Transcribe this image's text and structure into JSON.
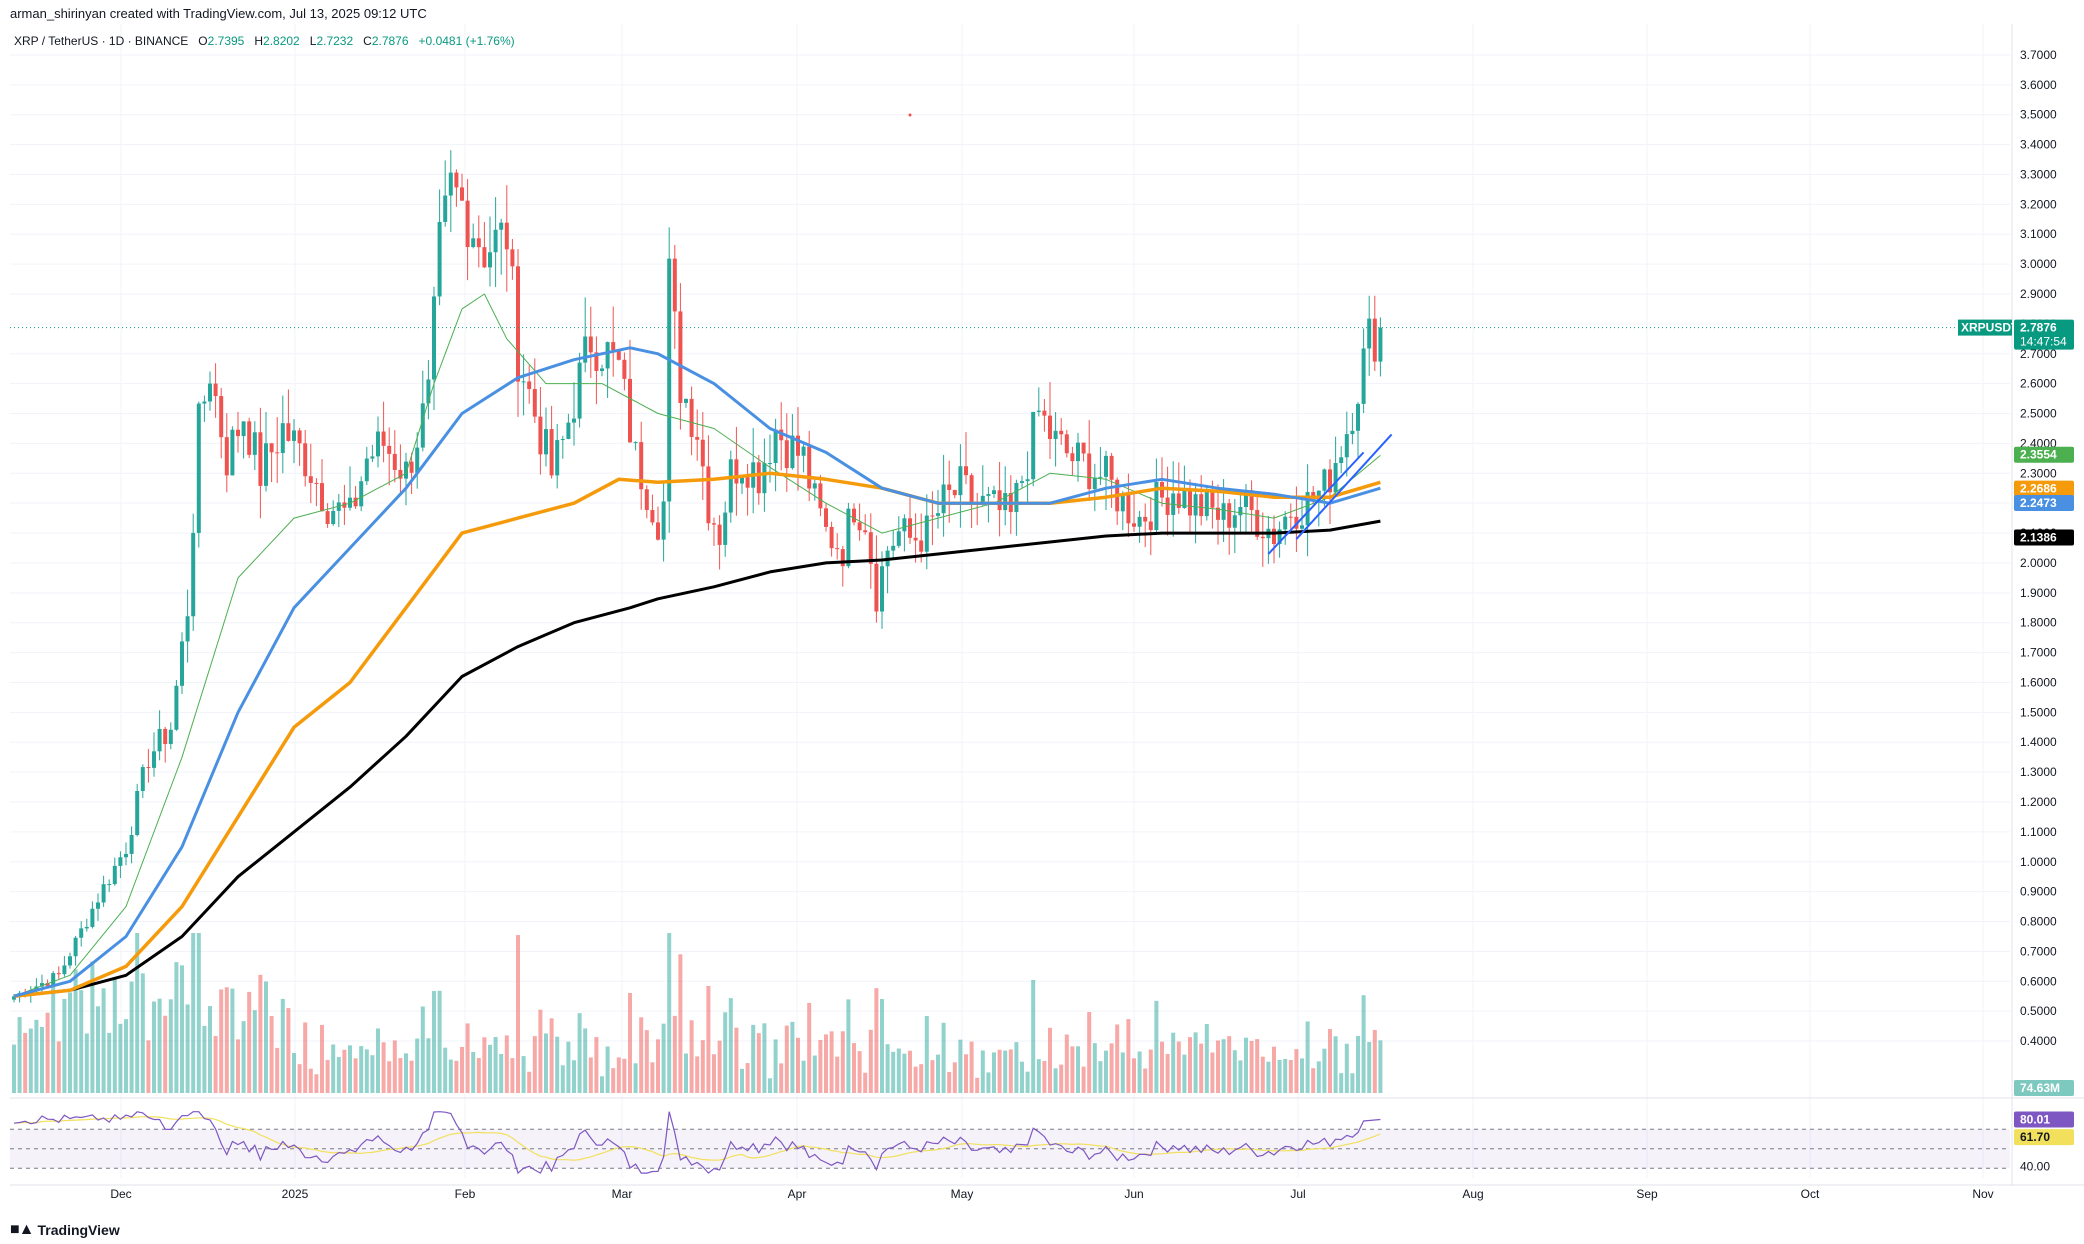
{
  "header": {
    "attribution": "arman_shirinyan created with TradingView.com, Jul 13, 2025 09:12 UTC"
  },
  "symbol": {
    "name": "XRP / TetherUS · 1D · BINANCE",
    "o_label": "O",
    "o_value": "2.7395",
    "h_label": "H",
    "h_value": "2.8202",
    "l_label": "L",
    "l_value": "2.7232",
    "c_label": "C",
    "c_value": "2.7876",
    "change": "+0.0481 (+1.76%)"
  },
  "price_tags": {
    "ticker": "XRPUSDT",
    "last": "2.7876",
    "countdown": "14:47:54",
    "ma_green": "2.3554",
    "ma_orange": "2.2686",
    "ma_blue": "2.2473",
    "ma_black": "2.1386",
    "volume": "74.63M",
    "rsi": "80.01",
    "rsi_ma": "61.70",
    "rsi_level": "40.00"
  },
  "logo": {
    "text": "TradingView"
  },
  "colors": {
    "up": "#26a69a",
    "down": "#ef5350",
    "ma_green": "#4caf50",
    "ma_blue": "#4a90e2",
    "ma_orange": "#f59b0b",
    "ma_black": "#000000",
    "channel": "#2962ff",
    "rsi": "#7e57c2",
    "rsi_ma": "#f2e05c",
    "last": "#089981"
  },
  "chart_data": {
    "type": "candlestick",
    "title": "XRP / TetherUS · 1D · BINANCE",
    "y_ticks": [
      "3.7000",
      "3.6000",
      "3.5000",
      "3.4000",
      "3.3000",
      "3.2000",
      "3.1000",
      "3.0000",
      "2.9000",
      "2.8000",
      "2.7000",
      "2.6000",
      "2.5000",
      "2.4000",
      "2.3000",
      "2.2000",
      "2.1000",
      "2.0000",
      "1.9000",
      "1.8000",
      "1.7000",
      "1.6000",
      "1.5000",
      "1.4000",
      "1.3000",
      "1.2000",
      "1.1000",
      "1.0000",
      "0.9000",
      "0.8000",
      "0.7000",
      "0.6000",
      "0.5000",
      "0.4000"
    ],
    "ylim": [
      0.35,
      3.75
    ],
    "x_ticks": [
      "Dec",
      "2025",
      "Feb",
      "Mar",
      "Apr",
      "May",
      "Jun",
      "Jul",
      "Aug",
      "Sep",
      "Oct",
      "Nov"
    ],
    "last_price": 2.7876,
    "price_path": [
      [
        0,
        0.55
      ],
      [
        8,
        0.62
      ],
      [
        15,
        0.88
      ],
      [
        20,
        1.05
      ],
      [
        24,
        1.35
      ],
      [
        28,
        1.45
      ],
      [
        31,
        1.85
      ],
      [
        33,
        2.45
      ],
      [
        35,
        2.65
      ],
      [
        38,
        2.35
      ],
      [
        41,
        2.5
      ],
      [
        44,
        2.3
      ],
      [
        48,
        2.45
      ],
      [
        52,
        2.35
      ],
      [
        56,
        2.2
      ],
      [
        60,
        2.15
      ],
      [
        63,
        2.35
      ],
      [
        66,
        2.4
      ],
      [
        70,
        2.3
      ],
      [
        74,
        2.55
      ],
      [
        76,
        3.05
      ],
      [
        78,
        3.25
      ],
      [
        80,
        3.2
      ],
      [
        84,
        3.05
      ],
      [
        88,
        3.1
      ],
      [
        90,
        2.7
      ],
      [
        93,
        2.5
      ],
      [
        96,
        2.3
      ],
      [
        98,
        2.4
      ],
      [
        100,
        2.55
      ],
      [
        103,
        2.75
      ],
      [
        106,
        2.7
      ],
      [
        108,
        2.65
      ],
      [
        111,
        2.35
      ],
      [
        113,
        2.25
      ],
      [
        115,
        2.15
      ],
      [
        116,
        2.2
      ],
      [
        117,
        2.95
      ],
      [
        119,
        2.6
      ],
      [
        122,
        2.45
      ],
      [
        124,
        2.2
      ],
      [
        126,
        2.1
      ],
      [
        128,
        2.3
      ],
      [
        130,
        2.35
      ],
      [
        133,
        2.3
      ],
      [
        136,
        2.45
      ],
      [
        138,
        2.4
      ],
      [
        141,
        2.35
      ],
      [
        143,
        2.2
      ],
      [
        145,
        2.1
      ],
      [
        148,
        2.05
      ],
      [
        150,
        2.2
      ],
      [
        152,
        2.15
      ],
      [
        154,
        1.9
      ],
      [
        156,
        2.05
      ],
      [
        158,
        2.1
      ],
      [
        160,
        2.08
      ],
      [
        163,
        2.1
      ],
      [
        166,
        2.2
      ],
      [
        169,
        2.25
      ],
      [
        172,
        2.2
      ],
      [
        175,
        2.18
      ],
      [
        178,
        2.15
      ],
      [
        181,
        2.35
      ],
      [
        183,
        2.5
      ],
      [
        186,
        2.4
      ],
      [
        189,
        2.35
      ],
      [
        192,
        2.32
      ],
      [
        195,
        2.28
      ],
      [
        198,
        2.2
      ],
      [
        201,
        2.15
      ],
      [
        204,
        2.2
      ],
      [
        207,
        2.25
      ],
      [
        210,
        2.2
      ],
      [
        213,
        2.18
      ],
      [
        216,
        2.15
      ],
      [
        219,
        2.2
      ],
      [
        222,
        2.15
      ],
      [
        225,
        2.1
      ],
      [
        228,
        2.18
      ],
      [
        231,
        2.2
      ],
      [
        234,
        2.25
      ],
      [
        236,
        2.35
      ],
      [
        238,
        2.45
      ],
      [
        240,
        2.6
      ],
      [
        242,
        2.75
      ],
      [
        244,
        2.78
      ]
    ],
    "moving_averages": [
      {
        "color_key": "ma_green",
        "last": 2.3554
      },
      {
        "color_key": "ma_orange",
        "last": 2.2686
      },
      {
        "color_key": "ma_blue",
        "last": 2.2473
      },
      {
        "color_key": "ma_black",
        "last": 2.1386
      }
    ],
    "ma_green": [
      [
        0,
        0.55
      ],
      [
        10,
        0.62
      ],
      [
        20,
        0.85
      ],
      [
        30,
        1.35
      ],
      [
        40,
        1.95
      ],
      [
        50,
        2.15
      ],
      [
        60,
        2.2
      ],
      [
        70,
        2.3
      ],
      [
        75,
        2.6
      ],
      [
        80,
        2.85
      ],
      [
        84,
        2.9
      ],
      [
        88,
        2.75
      ],
      [
        95,
        2.6
      ],
      [
        105,
        2.6
      ],
      [
        115,
        2.5
      ],
      [
        125,
        2.45
      ],
      [
        135,
        2.32
      ],
      [
        145,
        2.2
      ],
      [
        155,
        2.1
      ],
      [
        165,
        2.15
      ],
      [
        175,
        2.2
      ],
      [
        185,
        2.3
      ],
      [
        195,
        2.28
      ],
      [
        205,
        2.2
      ],
      [
        215,
        2.18
      ],
      [
        225,
        2.15
      ],
      [
        235,
        2.22
      ],
      [
        244,
        2.36
      ]
    ],
    "ma_blue": [
      [
        0,
        0.55
      ],
      [
        10,
        0.6
      ],
      [
        20,
        0.75
      ],
      [
        30,
        1.05
      ],
      [
        40,
        1.5
      ],
      [
        50,
        1.85
      ],
      [
        60,
        2.05
      ],
      [
        70,
        2.25
      ],
      [
        80,
        2.5
      ],
      [
        90,
        2.62
      ],
      [
        100,
        2.68
      ],
      [
        110,
        2.72
      ],
      [
        115,
        2.7
      ],
      [
        125,
        2.6
      ],
      [
        135,
        2.45
      ],
      [
        145,
        2.37
      ],
      [
        155,
        2.25
      ],
      [
        165,
        2.2
      ],
      [
        175,
        2.2
      ],
      [
        185,
        2.2
      ],
      [
        195,
        2.25
      ],
      [
        205,
        2.28
      ],
      [
        215,
        2.25
      ],
      [
        225,
        2.23
      ],
      [
        235,
        2.2
      ],
      [
        244,
        2.25
      ]
    ],
    "ma_orange": [
      [
        0,
        0.55
      ],
      [
        10,
        0.57
      ],
      [
        20,
        0.65
      ],
      [
        30,
        0.85
      ],
      [
        40,
        1.15
      ],
      [
        50,
        1.45
      ],
      [
        60,
        1.6
      ],
      [
        70,
        1.85
      ],
      [
        80,
        2.1
      ],
      [
        90,
        2.15
      ],
      [
        100,
        2.2
      ],
      [
        108,
        2.28
      ],
      [
        115,
        2.27
      ],
      [
        125,
        2.28
      ],
      [
        135,
        2.3
      ],
      [
        145,
        2.28
      ],
      [
        155,
        2.25
      ],
      [
        165,
        2.2
      ],
      [
        175,
        2.2
      ],
      [
        185,
        2.2
      ],
      [
        195,
        2.22
      ],
      [
        205,
        2.25
      ],
      [
        215,
        2.24
      ],
      [
        225,
        2.22
      ],
      [
        235,
        2.22
      ],
      [
        244,
        2.27
      ]
    ],
    "ma_black": [
      [
        0,
        0.55
      ],
      [
        10,
        0.57
      ],
      [
        20,
        0.62
      ],
      [
        30,
        0.75
      ],
      [
        40,
        0.95
      ],
      [
        50,
        1.1
      ],
      [
        60,
        1.25
      ],
      [
        70,
        1.42
      ],
      [
        80,
        1.62
      ],
      [
        90,
        1.72
      ],
      [
        100,
        1.8
      ],
      [
        110,
        1.85
      ],
      [
        115,
        1.88
      ],
      [
        125,
        1.92
      ],
      [
        135,
        1.97
      ],
      [
        145,
        2.0
      ],
      [
        155,
        2.01
      ],
      [
        165,
        2.03
      ],
      [
        175,
        2.05
      ],
      [
        185,
        2.07
      ],
      [
        195,
        2.09
      ],
      [
        205,
        2.1
      ],
      [
        215,
        2.1
      ],
      [
        225,
        2.1
      ],
      [
        235,
        2.11
      ],
      [
        244,
        2.14
      ]
    ],
    "channel_lines": [
      [
        [
          224,
          2.03
        ],
        [
          241,
          2.37
        ]
      ],
      [
        [
          229,
          2.08
        ],
        [
          246,
          2.43
        ]
      ]
    ],
    "volume_last": "74.63M",
    "rsi_levels": [
      70,
      50,
      30
    ]
  }
}
